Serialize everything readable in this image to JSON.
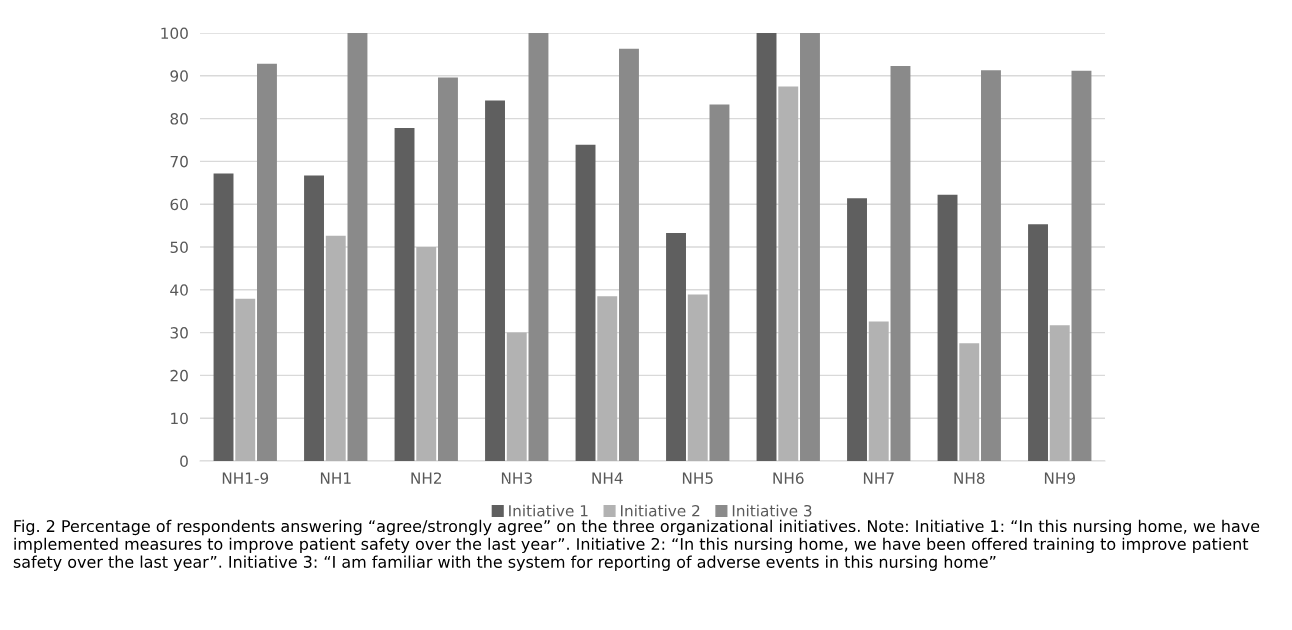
{
  "chart_data": {
    "type": "bar",
    "categories": [
      "NH1-9",
      "NH1",
      "NH2",
      "NH3",
      "NH4",
      "NH5",
      "NH6",
      "NH7",
      "NH8",
      "NH9"
    ],
    "series": [
      {
        "name": "Initiative 1",
        "color": "#5f5f5f",
        "values": [
          67.2,
          66.7,
          77.8,
          84.2,
          73.9,
          53.3,
          100,
          61.4,
          62.2,
          55.3
        ]
      },
      {
        "name": "Initiative 2",
        "color": "#b2b2b2",
        "values": [
          37.9,
          52.6,
          50,
          30,
          38.5,
          38.9,
          87.5,
          32.6,
          27.5,
          31.7
        ]
      },
      {
        "name": "Initiative 3",
        "color": "#8a8a8a",
        "values": [
          92.8,
          100,
          89.6,
          100,
          96.3,
          83.3,
          100,
          92.3,
          91.3,
          91.2
        ]
      }
    ],
    "ylim": [
      0,
      100
    ],
    "yticks": [
      0,
      10,
      20,
      30,
      40,
      50,
      60,
      70,
      80,
      90,
      100
    ],
    "grid": "y",
    "legend": "bottom",
    "annotations": [
      "Fig. 2 Percentage of respondents answering “agree/strongly agree” on the three organizational initiatives. Note: Initiative 1: “In this nursing home, we have implemented measures to improve patient safety over the last year”. Initiative 2: “In this nursing home, we have been offered training to improve patient safety over the last year”. Initiative 3: “I am familiar with the system for reporting of adverse events in this nursing home”"
    ]
  }
}
